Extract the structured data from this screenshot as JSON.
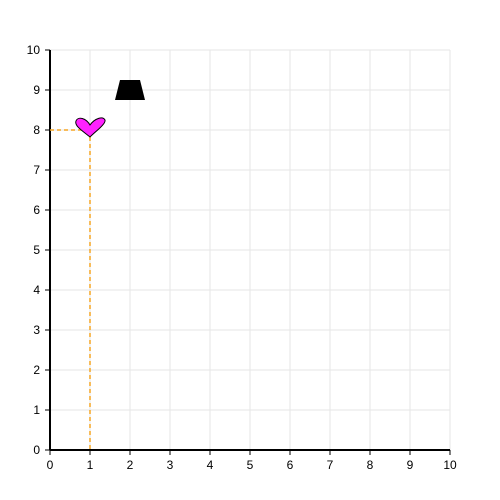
{
  "chart_data": {
    "type": "scatter",
    "title": "",
    "xlabel": "",
    "ylabel": "",
    "xlim": [
      0,
      10
    ],
    "ylim": [
      0,
      10
    ],
    "grid": true,
    "x_ticks": [
      "0",
      "1",
      "2",
      "3",
      "4",
      "5",
      "6",
      "7",
      "8",
      "9",
      "10"
    ],
    "y_ticks": [
      "0",
      "1",
      "2",
      "3",
      "4",
      "5",
      "6",
      "7",
      "8",
      "9",
      "10"
    ],
    "shapes": [
      {
        "name": "trapezoid",
        "x": 2,
        "y": 9,
        "color": "#000000"
      },
      {
        "name": "heart",
        "x": 1,
        "y": 8,
        "color": "#ff22ff"
      }
    ],
    "guides": {
      "x": 1,
      "y": 8,
      "color": "#f5a623"
    }
  },
  "colors": {
    "grid": "#e6e6e6",
    "axis": "#000000"
  }
}
